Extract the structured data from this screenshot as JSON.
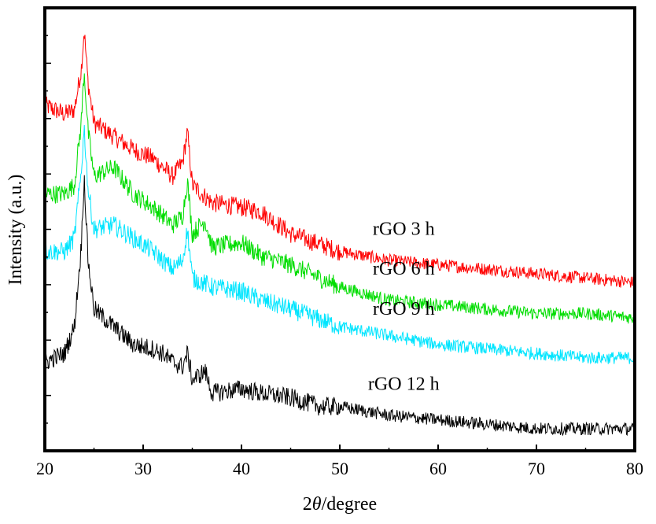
{
  "chart_data": {
    "type": "line",
    "title": "",
    "xlabel": "2θ/degree",
    "xlabel_prefix": "2",
    "xlabel_theta": "θ",
    "xlabel_suffix": "/degree",
    "ylabel": "Intensity (a.u.)",
    "xlim": [
      20,
      80
    ],
    "xticks": [
      20,
      30,
      40,
      50,
      60,
      70,
      80
    ],
    "xtick_labels": [
      "20",
      "30",
      "40",
      "50",
      "60",
      "70",
      "80"
    ],
    "yticks_labeled": false,
    "grid": false,
    "legend": "none (inline labels right of curves)",
    "series": [
      {
        "name": "rGO 3 h",
        "color": "#ff0000",
        "x": [
          20,
          22,
          23,
          23.7,
          24.0,
          24.4,
          25,
          27,
          29,
          31,
          33,
          34.0,
          34.5,
          35.0,
          37,
          40,
          42,
          45,
          50,
          55,
          60,
          65,
          70,
          75,
          80
        ],
        "y": [
          0.78,
          0.76,
          0.77,
          0.86,
          0.95,
          0.83,
          0.74,
          0.71,
          0.68,
          0.66,
          0.62,
          0.65,
          0.72,
          0.6,
          0.56,
          0.55,
          0.54,
          0.49,
          0.45,
          0.43,
          0.42,
          0.41,
          0.4,
          0.39,
          0.38
        ]
      },
      {
        "name": "rGO 6 h",
        "color": "#00dd00",
        "x": [
          20,
          22,
          23,
          23.7,
          24.0,
          24.4,
          25,
          27,
          29,
          31,
          33,
          34.0,
          34.5,
          35.0,
          36.3,
          37,
          40,
          42,
          45,
          50,
          55,
          60,
          65,
          70,
          75,
          80
        ],
        "y": [
          0.58,
          0.58,
          0.6,
          0.74,
          0.86,
          0.72,
          0.62,
          0.64,
          0.58,
          0.55,
          0.51,
          0.53,
          0.61,
          0.49,
          0.52,
          0.46,
          0.47,
          0.44,
          0.42,
          0.37,
          0.34,
          0.33,
          0.32,
          0.31,
          0.31,
          0.3
        ]
      },
      {
        "name": "rGO 9 h",
        "color": "#00e5ff",
        "x": [
          20,
          22,
          23,
          23.7,
          24.0,
          24.4,
          25,
          27,
          29,
          31,
          33,
          34.0,
          34.5,
          35.0,
          37,
          40,
          42,
          45,
          50,
          55,
          60,
          65,
          70,
          75,
          80
        ],
        "y": [
          0.45,
          0.45,
          0.48,
          0.63,
          0.73,
          0.59,
          0.5,
          0.51,
          0.48,
          0.45,
          0.41,
          0.43,
          0.5,
          0.39,
          0.37,
          0.36,
          0.34,
          0.32,
          0.28,
          0.26,
          0.24,
          0.23,
          0.22,
          0.21,
          0.21
        ]
      },
      {
        "name": "rGO 12 h",
        "color": "#000000",
        "x": [
          20,
          22,
          23,
          23.7,
          24.0,
          24.4,
          25,
          27,
          29,
          31,
          32,
          33,
          34.0,
          34.5,
          35.0,
          36.3,
          37,
          40,
          42,
          45,
          48,
          50,
          55,
          60,
          65,
          70,
          75,
          80
        ],
        "y": [
          0.2,
          0.22,
          0.28,
          0.46,
          0.62,
          0.43,
          0.32,
          0.28,
          0.24,
          0.23,
          0.22,
          0.2,
          0.19,
          0.22,
          0.16,
          0.18,
          0.13,
          0.14,
          0.13,
          0.12,
          0.1,
          0.1,
          0.08,
          0.07,
          0.06,
          0.05,
          0.05,
          0.05
        ]
      }
    ],
    "label_colors": "#000000"
  }
}
